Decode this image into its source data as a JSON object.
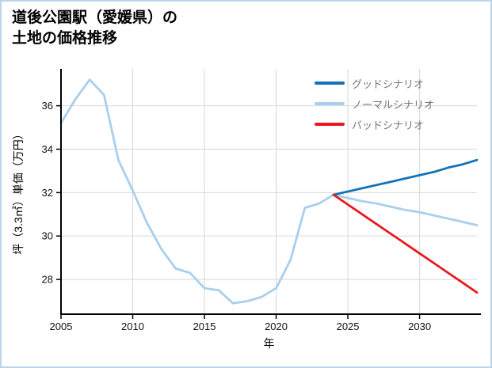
{
  "page": {
    "background": "#ffffff",
    "border_color": "#b8d6ec"
  },
  "chart_data": {
    "type": "line",
    "title": "道後公園駅（愛媛県）の土地の価格推移",
    "title_lines": [
      "道後公園駅（愛媛県）の",
      "土地の価格推移"
    ],
    "xlabel": "年",
    "ylabel": "坪（3.3㎡）単価（万円）",
    "xlim": [
      2005,
      2034
    ],
    "ylim": [
      26.4,
      37.7
    ],
    "xticks": [
      2005,
      2010,
      2015,
      2020,
      2025,
      2030
    ],
    "yticks": [
      28,
      30,
      32,
      34,
      36
    ],
    "grid": true,
    "legend_position": "top-right",
    "colors": {
      "grid": "#d8d8d8",
      "axis": "#000000",
      "tick_text": "#111111",
      "legend_text": "#757575"
    },
    "series": [
      {
        "key": "good",
        "name": "グッドシナリオ",
        "color": "#1273b8",
        "z": 2,
        "x": [
          2024,
          2025,
          2026,
          2027,
          2028,
          2029,
          2030,
          2031,
          2032,
          2033,
          2034
        ],
        "values": [
          31.9,
          32.05,
          32.2,
          32.35,
          32.5,
          32.65,
          32.8,
          32.95,
          33.15,
          33.3,
          33.5
        ]
      },
      {
        "key": "normal",
        "name": "ノーマルシナリオ",
        "color": "#a8cfee",
        "z": 1,
        "x": [
          2005,
          2006,
          2007,
          2008,
          2009,
          2010,
          2011,
          2012,
          2013,
          2014,
          2015,
          2016,
          2017,
          2018,
          2019,
          2020,
          2021,
          2022,
          2023,
          2024,
          2025,
          2026,
          2027,
          2028,
          2029,
          2030,
          2031,
          2032,
          2033,
          2034
        ],
        "values": [
          35.2,
          36.3,
          37.2,
          36.5,
          33.5,
          32.1,
          30.6,
          29.4,
          28.5,
          28.3,
          27.6,
          27.5,
          26.9,
          27.0,
          27.2,
          27.6,
          28.9,
          31.3,
          31.5,
          31.9,
          31.75,
          31.6,
          31.5,
          31.35,
          31.2,
          31.1,
          30.95,
          30.8,
          30.65,
          30.5
        ]
      },
      {
        "key": "bad",
        "name": "バッドシナリオ",
        "color": "#e8191f",
        "z": 3,
        "x": [
          2024,
          2025,
          2026,
          2027,
          2028,
          2029,
          2030,
          2031,
          2032,
          2033,
          2034
        ],
        "values": [
          31.9,
          31.45,
          31.0,
          30.55,
          30.1,
          29.65,
          29.2,
          28.75,
          28.3,
          27.85,
          27.4
        ]
      }
    ]
  }
}
